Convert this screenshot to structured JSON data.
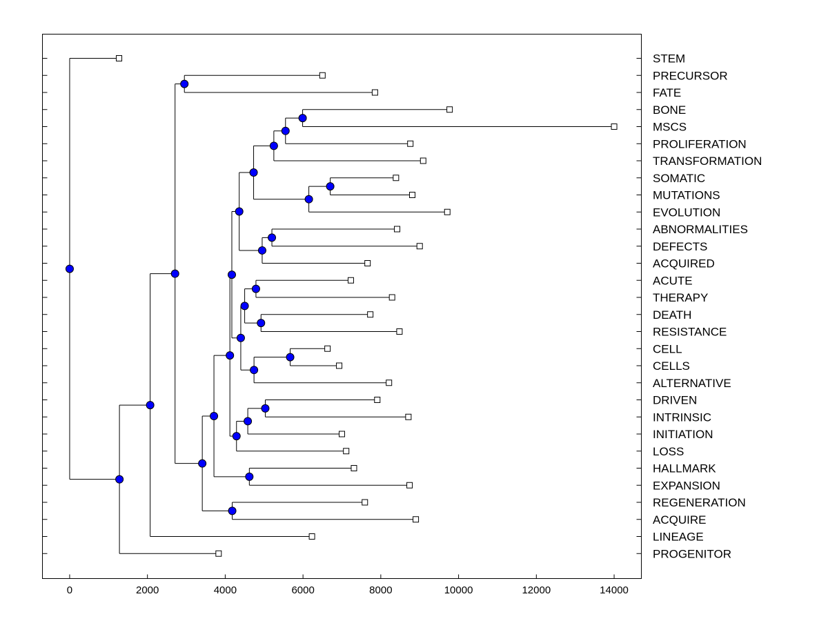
{
  "chart_data": {
    "type": "dendrogram",
    "title": "",
    "xlabel": "",
    "ylabel": "",
    "xlim": [
      -700,
      14700
    ],
    "x_ticks": [
      0,
      2000,
      4000,
      6000,
      8000,
      10000,
      12000,
      14000
    ],
    "x_tick_labels": [
      "0",
      "2000",
      "4000",
      "6000",
      "8000",
      "10000",
      "12000",
      "14000"
    ],
    "leaves": [
      {
        "id": "STEM",
        "label": "STEM",
        "value": 1270
      },
      {
        "id": "PRECURSOR",
        "label": "PRECURSOR",
        "value": 6500
      },
      {
        "id": "FATE",
        "label": "FATE",
        "value": 7850
      },
      {
        "id": "BONE",
        "label": "BONE",
        "value": 9770
      },
      {
        "id": "MSCS",
        "label": "MSCS",
        "value": 14000
      },
      {
        "id": "PROLIFERATION",
        "label": "PROLIFERATION",
        "value": 8760
      },
      {
        "id": "TRANSFORMATION",
        "label": "TRANSFORMATION",
        "value": 9090
      },
      {
        "id": "SOMATIC",
        "label": "SOMATIC",
        "value": 8390
      },
      {
        "id": "MUTATIONS",
        "label": "MUTATIONS",
        "value": 8810
      },
      {
        "id": "EVOLUTION",
        "label": "EVOLUTION",
        "value": 9710
      },
      {
        "id": "ABNORMALITIES",
        "label": "ABNORMALITIES",
        "value": 8420
      },
      {
        "id": "DEFECTS",
        "label": "DEFECTS",
        "value": 9000
      },
      {
        "id": "ACQUIRED",
        "label": "ACQUIRED",
        "value": 7660
      },
      {
        "id": "ACUTE",
        "label": "ACUTE",
        "value": 7230
      },
      {
        "id": "THERAPY",
        "label": "THERAPY",
        "value": 8290
      },
      {
        "id": "DEATH",
        "label": "DEATH",
        "value": 7730
      },
      {
        "id": "RESISTANCE",
        "label": "RESISTANCE",
        "value": 8480
      },
      {
        "id": "CELL",
        "label": "CELL",
        "value": 6630
      },
      {
        "id": "CELLS",
        "label": "CELLS",
        "value": 6930
      },
      {
        "id": "ALTERNATIVE",
        "label": "ALTERNATIVE",
        "value": 8210
      },
      {
        "id": "DRIVEN",
        "label": "DRIVEN",
        "value": 7910
      },
      {
        "id": "INTRINSIC",
        "label": "INTRINSIC",
        "value": 8710
      },
      {
        "id": "INITIATION",
        "label": "INITIATION",
        "value": 7000
      },
      {
        "id": "LOSS",
        "label": "LOSS",
        "value": 7110
      },
      {
        "id": "HALLMARK",
        "label": "HALLMARK",
        "value": 7310
      },
      {
        "id": "EXPANSION",
        "label": "EXPANSION",
        "value": 8740
      },
      {
        "id": "REGENERATION",
        "label": "REGENERATION",
        "value": 7590
      },
      {
        "id": "ACQUIRE",
        "label": "ACQUIRE",
        "value": 8900
      },
      {
        "id": "LINEAGE",
        "label": "LINEAGE",
        "value": 6230
      },
      {
        "id": "PROGENITOR",
        "label": "PROGENITOR",
        "value": 3830
      }
    ],
    "nodes": [
      {
        "id": "n_prec_fate",
        "value": 2950,
        "children": [
          "PRECURSOR",
          "FATE"
        ]
      },
      {
        "id": "n_bone_mscs",
        "value": 5990,
        "children": [
          "BONE",
          "MSCS"
        ]
      },
      {
        "id": "n_bm_prolif",
        "value": 5550,
        "children": [
          "n_bone_mscs",
          "PROLIFERATION"
        ]
      },
      {
        "id": "n_bmp_transf",
        "value": 5250,
        "children": [
          "n_bm_prolif",
          "TRANSFORMATION"
        ]
      },
      {
        "id": "n_som_mut",
        "value": 6700,
        "children": [
          "SOMATIC",
          "MUTATIONS"
        ]
      },
      {
        "id": "n_sm_evol",
        "value": 6150,
        "children": [
          "n_som_mut",
          "EVOLUTION"
        ]
      },
      {
        "id": "n_transf_evol",
        "value": 4730,
        "children": [
          "n_bmp_transf",
          "n_sm_evol"
        ]
      },
      {
        "id": "n_abn_def",
        "value": 5200,
        "children": [
          "ABNORMALITIES",
          "DEFECTS"
        ]
      },
      {
        "id": "n_ad_acq",
        "value": 4950,
        "children": [
          "n_abn_def",
          "ACQUIRED"
        ]
      },
      {
        "id": "n_upper_mid",
        "value": 4360,
        "children": [
          "n_transf_evol",
          "n_ad_acq"
        ]
      },
      {
        "id": "n_acute_ther",
        "value": 4790,
        "children": [
          "ACUTE",
          "THERAPY"
        ]
      },
      {
        "id": "n_death_res",
        "value": 4920,
        "children": [
          "DEATH",
          "RESISTANCE"
        ]
      },
      {
        "id": "n_at_dr",
        "value": 4500,
        "children": [
          "n_acute_ther",
          "n_death_res"
        ]
      },
      {
        "id": "n_cell_cells",
        "value": 5670,
        "children": [
          "CELL",
          "CELLS"
        ]
      },
      {
        "id": "n_cc_alt",
        "value": 4740,
        "children": [
          "n_cell_cells",
          "ALTERNATIVE"
        ]
      },
      {
        "id": "n_mid_lower",
        "value": 4400,
        "children": [
          "n_at_dr",
          "n_cc_alt"
        ]
      },
      {
        "id": "n_upper_lower",
        "value": 4170,
        "children": [
          "n_upper_mid",
          "n_mid_lower"
        ]
      },
      {
        "id": "n_drv_intr",
        "value": 5030,
        "children": [
          "DRIVEN",
          "INTRINSIC"
        ]
      },
      {
        "id": "n_di_init",
        "value": 4580,
        "children": [
          "n_drv_intr",
          "INITIATION"
        ]
      },
      {
        "id": "n_dii_loss",
        "value": 4290,
        "children": [
          "n_di_init",
          "LOSS"
        ]
      },
      {
        "id": "n_mega_loss",
        "value": 4120,
        "children": [
          "n_upper_lower",
          "n_dii_loss"
        ]
      },
      {
        "id": "n_hall_exp",
        "value": 4620,
        "children": [
          "HALLMARK",
          "EXPANSION"
        ]
      },
      {
        "id": "n_ml_he",
        "value": 3710,
        "children": [
          "n_mega_loss",
          "n_hall_exp"
        ]
      },
      {
        "id": "n_regen_acq",
        "value": 4180,
        "children": [
          "REGENERATION",
          "ACQUIRE"
        ]
      },
      {
        "id": "n_big_regen",
        "value": 3410,
        "children": [
          "n_ml_he",
          "n_regen_acq"
        ]
      },
      {
        "id": "n_pf_big",
        "value": 2710,
        "children": [
          "n_prec_fate",
          "n_big_regen"
        ]
      },
      {
        "id": "n_pfb_lineage",
        "value": 2070,
        "children": [
          "n_pf_big",
          "LINEAGE"
        ]
      },
      {
        "id": "n_pfbl_prog",
        "value": 1280,
        "children": [
          "n_pfb_lineage",
          "PROGENITOR"
        ]
      },
      {
        "id": "root",
        "value": 0,
        "children": [
          "STEM",
          "n_pfbl_prog"
        ]
      }
    ]
  }
}
